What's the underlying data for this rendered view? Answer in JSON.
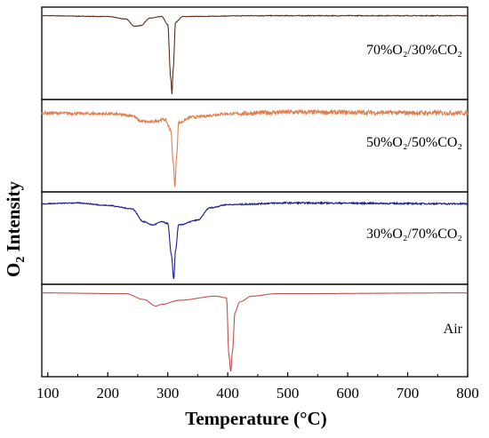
{
  "chart_data": {
    "type": "line",
    "layout": "stacked-panels",
    "xlabel": "Temperature (°C)",
    "ylabel_main": "O",
    "ylabel_sub": "2",
    "ylabel_rest": " Intensity",
    "xlim": [
      90,
      800
    ],
    "xticks": [
      100,
      200,
      300,
      400,
      500,
      600,
      700,
      800
    ],
    "yticks": false,
    "grid": false,
    "series": [
      {
        "name": "70%O₂/30%CO₂",
        "color": "#5a2e1b",
        "noise": 0.006,
        "points": [
          [
            90,
            0.96
          ],
          [
            200,
            0.95
          ],
          [
            230,
            0.92
          ],
          [
            245,
            0.83
          ],
          [
            255,
            0.84
          ],
          [
            270,
            0.93
          ],
          [
            290,
            0.95
          ],
          [
            300,
            0.85
          ],
          [
            305,
            0.2
          ],
          [
            307,
            0.0
          ],
          [
            309,
            0.3
          ],
          [
            313,
            0.88
          ],
          [
            325,
            0.95
          ],
          [
            450,
            0.96
          ],
          [
            800,
            0.96
          ]
        ]
      },
      {
        "name": "50%O₂/50%CO₂",
        "color": "#e07d4f",
        "noise": 0.035,
        "points": [
          [
            90,
            0.9
          ],
          [
            200,
            0.89
          ],
          [
            240,
            0.87
          ],
          [
            255,
            0.8
          ],
          [
            270,
            0.79
          ],
          [
            295,
            0.82
          ],
          [
            305,
            0.7
          ],
          [
            309,
            0.3
          ],
          [
            312,
            0.0
          ],
          [
            315,
            0.4
          ],
          [
            318,
            0.78
          ],
          [
            340,
            0.85
          ],
          [
            400,
            0.89
          ],
          [
            500,
            0.91
          ],
          [
            800,
            0.9
          ]
        ]
      },
      {
        "name": "30%O₂/70%CO₂",
        "color": "#1c1c8c",
        "noise": 0.012,
        "points": [
          [
            90,
            0.92
          ],
          [
            150,
            0.93
          ],
          [
            200,
            0.9
          ],
          [
            240,
            0.86
          ],
          [
            260,
            0.7
          ],
          [
            275,
            0.66
          ],
          [
            290,
            0.7
          ],
          [
            300,
            0.68
          ],
          [
            306,
            0.3
          ],
          [
            310,
            0.0
          ],
          [
            313,
            0.35
          ],
          [
            318,
            0.66
          ],
          [
            350,
            0.72
          ],
          [
            370,
            0.87
          ],
          [
            400,
            0.91
          ],
          [
            500,
            0.93
          ],
          [
            800,
            0.92
          ]
        ]
      },
      {
        "name": "Air",
        "color": "#c0504d",
        "noise": 0.0,
        "points": [
          [
            90,
            0.96
          ],
          [
            230,
            0.95
          ],
          [
            260,
            0.88
          ],
          [
            280,
            0.8
          ],
          [
            290,
            0.82
          ],
          [
            320,
            0.87
          ],
          [
            380,
            0.92
          ],
          [
            398,
            0.9
          ],
          [
            402,
            0.2
          ],
          [
            405,
            0.0
          ],
          [
            408,
            0.25
          ],
          [
            412,
            0.72
          ],
          [
            420,
            0.85
          ],
          [
            440,
            0.92
          ],
          [
            480,
            0.95
          ],
          [
            800,
            0.96
          ]
        ]
      }
    ]
  }
}
